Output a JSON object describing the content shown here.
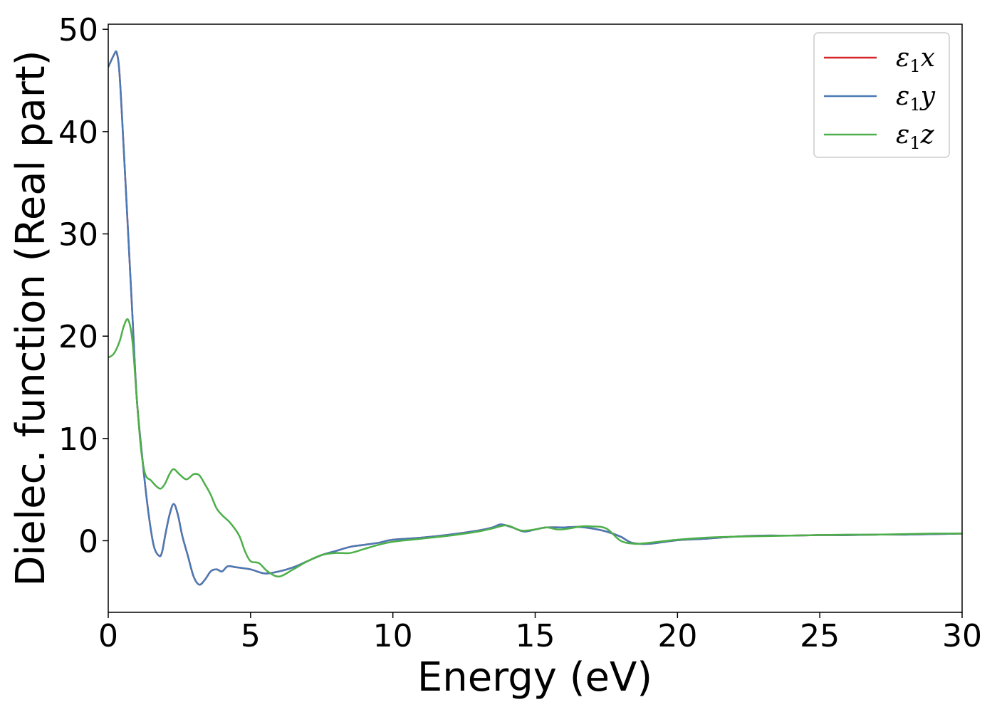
{
  "chart_data": {
    "type": "line",
    "title": "",
    "xlabel": "Energy (eV)",
    "ylabel": "Dielec. function (Real part)",
    "xlim": [
      0,
      30
    ],
    "ylim": [
      -7,
      50.5
    ],
    "xticks": [
      0,
      5,
      10,
      15,
      20,
      25,
      30
    ],
    "yticks": [
      0,
      10,
      20,
      30,
      40,
      50
    ],
    "grid": false,
    "legend_position": "top-right",
    "series": [
      {
        "name": "ε₁x",
        "legend_base": "ε",
        "legend_sub": "1",
        "legend_suffix": "x",
        "color": "#d62728",
        "x": [
          0,
          0.2,
          0.3,
          0.4,
          0.55,
          0.7,
          0.85,
          1.0,
          1.2,
          1.4,
          1.6,
          1.8,
          1.9,
          2.0,
          2.15,
          2.3,
          2.45,
          2.6,
          2.8,
          3.0,
          3.2,
          3.4,
          3.6,
          3.8,
          4.0,
          4.2,
          4.5,
          5.0,
          5.5,
          6.0,
          6.5,
          7.0,
          7.5,
          8.0,
          8.5,
          9.0,
          9.5,
          10.0,
          11.0,
          12.0,
          13.0,
          13.5,
          13.8,
          14.2,
          14.6,
          15.0,
          15.4,
          16.0,
          16.5,
          17.0,
          17.5,
          18.0,
          18.4,
          19.0,
          20.0,
          21.0,
          22.0,
          23.0,
          24.0,
          25.0,
          26.0,
          27.0,
          28.0,
          29.0,
          30.0
        ],
        "y": [
          46.3,
          47.5,
          47.7,
          45.5,
          38.0,
          30.0,
          22.0,
          14.0,
          8.0,
          3.0,
          -0.5,
          -1.5,
          -1.0,
          0.5,
          2.5,
          3.6,
          2.5,
          0.5,
          -1.5,
          -3.5,
          -4.3,
          -3.8,
          -3.0,
          -2.8,
          -3.0,
          -2.5,
          -2.6,
          -2.8,
          -3.2,
          -3.0,
          -2.6,
          -2.0,
          -1.4,
          -1.0,
          -0.6,
          -0.4,
          -0.2,
          0.1,
          0.3,
          0.6,
          1.0,
          1.3,
          1.6,
          1.3,
          0.9,
          1.1,
          1.3,
          1.3,
          1.35,
          1.2,
          0.9,
          0.4,
          -0.2,
          -0.3,
          0.05,
          0.2,
          0.4,
          0.5,
          0.5,
          0.55,
          0.55,
          0.6,
          0.6,
          0.65,
          0.7
        ]
      },
      {
        "name": "ε₁y",
        "legend_base": "ε",
        "legend_sub": "1",
        "legend_suffix": "y",
        "color": "#4a7ab5",
        "x": [
          0,
          0.2,
          0.3,
          0.4,
          0.55,
          0.7,
          0.85,
          1.0,
          1.2,
          1.4,
          1.6,
          1.8,
          1.9,
          2.0,
          2.15,
          2.3,
          2.45,
          2.6,
          2.8,
          3.0,
          3.2,
          3.4,
          3.6,
          3.8,
          4.0,
          4.2,
          4.5,
          5.0,
          5.5,
          6.0,
          6.5,
          7.0,
          7.5,
          8.0,
          8.5,
          9.0,
          9.5,
          10.0,
          11.0,
          12.0,
          13.0,
          13.5,
          13.8,
          14.2,
          14.6,
          15.0,
          15.4,
          16.0,
          16.5,
          17.0,
          17.5,
          18.0,
          18.4,
          19.0,
          20.0,
          21.0,
          22.0,
          23.0,
          24.0,
          25.0,
          26.0,
          27.0,
          28.0,
          29.0,
          30.0
        ],
        "y": [
          46.3,
          47.5,
          47.7,
          45.5,
          38.0,
          30.0,
          22.0,
          14.0,
          8.0,
          3.0,
          -0.5,
          -1.5,
          -1.0,
          0.5,
          2.5,
          3.6,
          2.5,
          0.5,
          -1.5,
          -3.5,
          -4.3,
          -3.8,
          -3.0,
          -2.8,
          -3.0,
          -2.5,
          -2.6,
          -2.8,
          -3.2,
          -3.0,
          -2.6,
          -2.0,
          -1.4,
          -1.0,
          -0.6,
          -0.4,
          -0.2,
          0.1,
          0.3,
          0.6,
          1.0,
          1.3,
          1.6,
          1.3,
          0.9,
          1.1,
          1.3,
          1.3,
          1.35,
          1.2,
          0.9,
          0.4,
          -0.2,
          -0.3,
          0.05,
          0.2,
          0.4,
          0.5,
          0.5,
          0.55,
          0.55,
          0.6,
          0.6,
          0.65,
          0.7
        ]
      },
      {
        "name": "ε₁z",
        "legend_base": "ε",
        "legend_sub": "1",
        "legend_suffix": "z",
        "color": "#4daf4a",
        "x": [
          0,
          0.2,
          0.4,
          0.55,
          0.7,
          0.85,
          1.0,
          1.15,
          1.3,
          1.5,
          1.7,
          1.85,
          2.0,
          2.15,
          2.3,
          2.5,
          2.75,
          3.0,
          3.2,
          3.4,
          3.6,
          3.8,
          4.0,
          4.3,
          4.6,
          4.8,
          5.0,
          5.3,
          5.6,
          6.0,
          6.5,
          7.0,
          7.5,
          8.0,
          8.5,
          9.0,
          9.5,
          10.0,
          11.0,
          12.0,
          13.0,
          13.5,
          14.0,
          14.5,
          15.0,
          15.4,
          15.8,
          16.2,
          16.6,
          17.0,
          17.5,
          18.0,
          18.5,
          19.0,
          20.0,
          21.0,
          22.0,
          23.0,
          24.0,
          25.0,
          26.0,
          27.0,
          28.0,
          29.0,
          30.0
        ],
        "y": [
          17.9,
          18.3,
          19.5,
          21.0,
          21.6,
          19.5,
          14.0,
          9.0,
          6.5,
          5.9,
          5.3,
          5.1,
          5.6,
          6.5,
          7.0,
          6.5,
          6.0,
          6.5,
          6.4,
          5.5,
          4.5,
          3.2,
          2.5,
          1.7,
          0.5,
          -1.0,
          -2.0,
          -2.2,
          -3.0,
          -3.5,
          -2.8,
          -2.0,
          -1.4,
          -1.2,
          -1.2,
          -0.8,
          -0.4,
          -0.1,
          0.2,
          0.5,
          0.9,
          1.2,
          1.5,
          1.0,
          1.1,
          1.3,
          1.1,
          1.2,
          1.4,
          1.4,
          1.2,
          0.0,
          -0.3,
          -0.2,
          0.1,
          0.3,
          0.4,
          0.45,
          0.5,
          0.55,
          0.6,
          0.6,
          0.65,
          0.7,
          0.7
        ]
      }
    ]
  }
}
